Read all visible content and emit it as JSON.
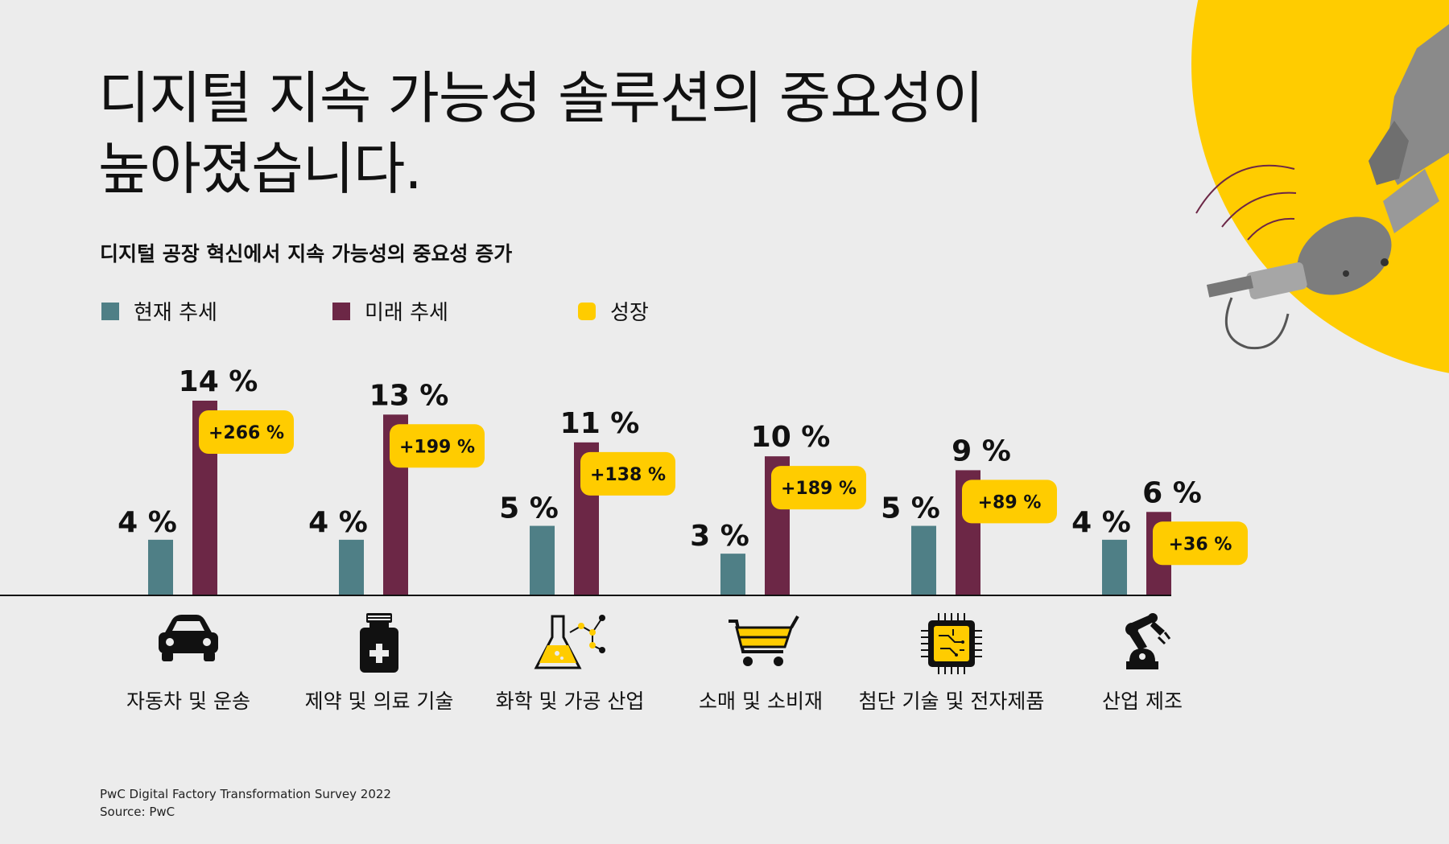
{
  "title_line1": "디지털 지속 가능성 솔루션의 중요성이",
  "title_line2": "높아졌습니다.",
  "subtitle": "디지털 공장 혁신에서 지속 가능성의 중요성 증가",
  "legend": [
    {
      "label": "현재 추세",
      "color": "#4f7f86"
    },
    {
      "label": "미래 추세",
      "color": "#6c2746"
    },
    {
      "label": "성장",
      "color": "#ffcc00"
    }
  ],
  "footer": {
    "line1": "PwC Digital Factory Transformation Survey 2022",
    "line2": "Source: PwC"
  },
  "colors": {
    "current": "#4f7f86",
    "future": "#6c2746",
    "growth": "#ffcc00",
    "background": "#ececec"
  },
  "chart_data": {
    "type": "bar",
    "title": "디지털 공장 혁신에서 지속 가능성의 중요성 증가",
    "categories": [
      "자동차 및 운송",
      "제약 및 의료 기술",
      "화학 및 가공 산업",
      "소매 및 소비재",
      "첨단 기술 및 전자제품",
      "산업 제조"
    ],
    "icons": [
      "car-icon",
      "medicine-bottle-icon",
      "chemistry-flask-icon",
      "shopping-cart-icon",
      "microchip-icon",
      "robot-arm-icon"
    ],
    "series": [
      {
        "name": "현재 추세",
        "values": [
          4,
          4,
          5,
          3,
          5,
          4
        ],
        "labels": [
          "4 %",
          "4 %",
          "5 %",
          "3 %",
          "5 %",
          "4 %"
        ]
      },
      {
        "name": "미래 추세",
        "values": [
          14,
          13,
          11,
          10,
          9,
          6
        ],
        "labels": [
          "14 %",
          "13 %",
          "11 %",
          "10 %",
          "9 %",
          "6 %"
        ]
      }
    ],
    "growth": {
      "name": "성장",
      "labels": [
        "+266 %",
        "+199 %",
        "+138 %",
        "+189 %",
        "+89 %",
        "+36 %"
      ]
    },
    "ylim": [
      0,
      14
    ],
    "xlabel": "",
    "ylabel": "",
    "grid": false,
    "legend_position": "top-left"
  }
}
